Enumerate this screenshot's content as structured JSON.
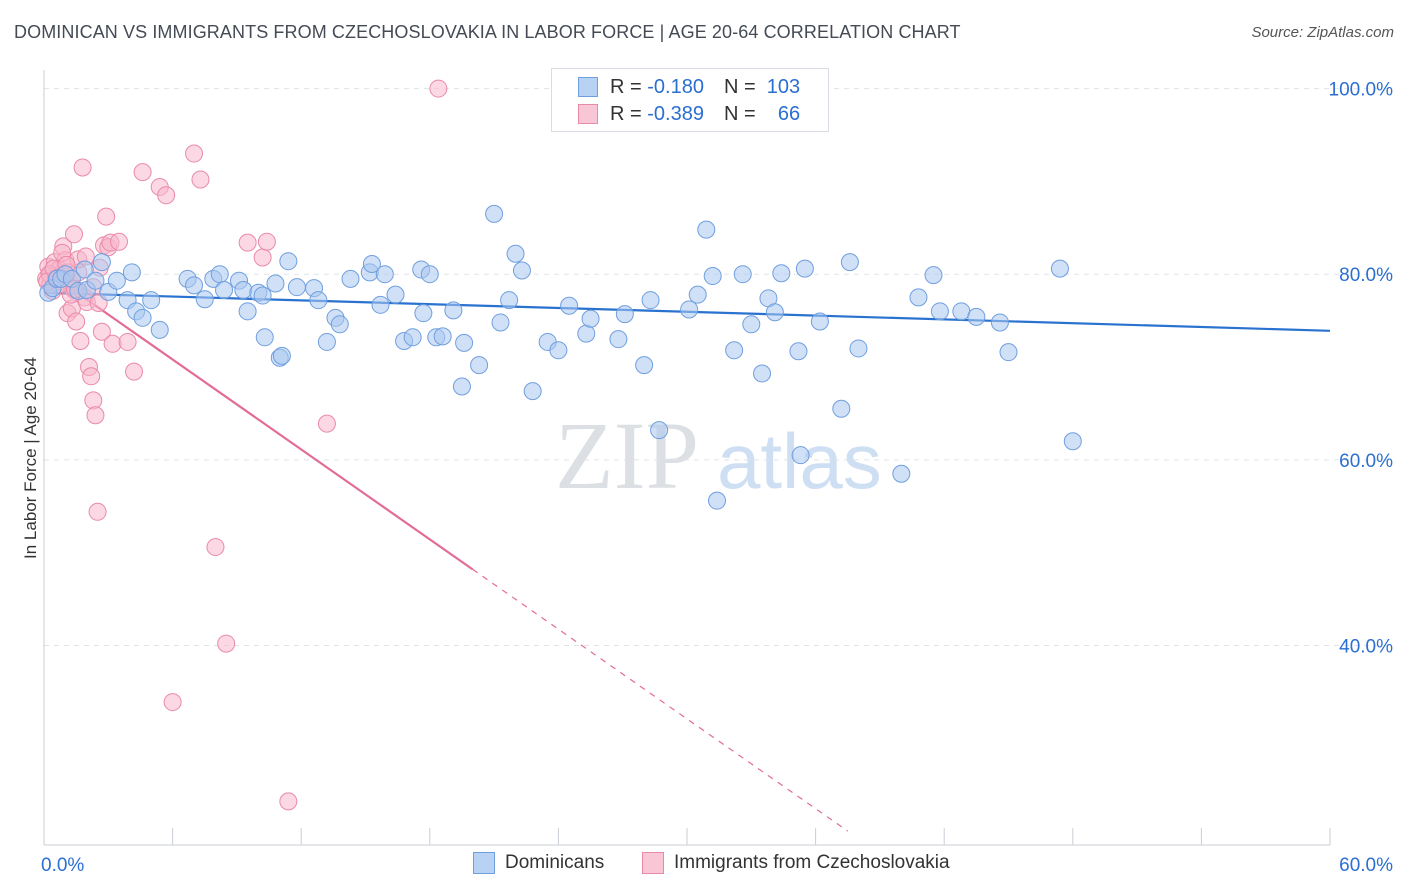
{
  "title": "DOMINICAN VS IMMIGRANTS FROM CZECHOSLOVAKIA IN LABOR FORCE | AGE 20-64 CORRELATION CHART",
  "source": "Source: ZipAtlas.com",
  "watermark": {
    "zip": "ZIP",
    "atlas": "atlas"
  },
  "legend_top": {
    "rows": [
      {
        "r_label": "R =",
        "r_value": "-0.180",
        "n_label": "N =",
        "n_value": "103"
      },
      {
        "r_label": "R =",
        "r_value": "-0.389",
        "n_label": "N =",
        "n_value": "66"
      }
    ]
  },
  "legend_bottom": [
    "Dominicans",
    "Immigrants from Czechoslovakia"
  ],
  "chart_data": {
    "type": "scatter",
    "title": "DOMINICAN VS IMMIGRANTS FROM CZECHOSLOVAKIA IN LABOR FORCE | AGE 20-64 CORRELATION CHART",
    "xlabel": "",
    "ylabel": "In Labor Force | Age 20-64",
    "xlim": [
      0,
      60
    ],
    "ylim": [
      18.5,
      102
    ],
    "x_tick_labels": [
      "0.0%",
      "60.0%"
    ],
    "y_ticks": [
      40,
      60,
      80,
      100
    ],
    "y_tick_labels": [
      "40.0%",
      "60.0%",
      "80.0%",
      "100.0%"
    ],
    "grid": true,
    "colors": {
      "blue_fill": "#a9c8f0",
      "blue_stroke": "#6f9fdf",
      "blue_line": "#2a72d0",
      "pink_fill": "#f7b8cc",
      "pink_stroke": "#ea8aa9",
      "pink_line": "#e26b97",
      "axis_text": "#2a6fd1",
      "grid": "#dfe3e8"
    },
    "series": [
      {
        "name": "Dominicans",
        "r": -0.18,
        "n": 103,
        "trend": {
          "x0": 0,
          "y0": 78.0,
          "x1": 60,
          "y1": 73.9
        },
        "x": [
          0.2,
          0.4,
          0.6,
          0.8,
          1.0,
          1.3,
          1.6,
          1.9,
          2.0,
          2.4,
          2.7,
          3.0,
          3.4,
          3.9,
          4.1,
          4.3,
          4.6,
          5.0,
          5.4,
          6.7,
          7.0,
          7.5,
          7.9,
          8.2,
          8.4,
          9.1,
          9.3,
          9.5,
          10.0,
          10.2,
          10.3,
          10.8,
          11.0,
          11.1,
          11.4,
          11.8,
          12.6,
          12.8,
          13.2,
          13.6,
          13.8,
          14.3,
          15.2,
          15.3,
          15.7,
          15.9,
          16.4,
          16.8,
          17.2,
          17.6,
          17.7,
          18.0,
          18.3,
          18.6,
          19.1,
          19.5,
          19.6,
          20.3,
          21.0,
          21.3,
          21.7,
          22.0,
          22.3,
          22.8,
          23.5,
          24.0,
          24.5,
          25.3,
          25.5,
          26.8,
          27.1,
          28.0,
          28.3,
          28.7,
          30.1,
          30.5,
          30.9,
          31.2,
          31.4,
          32.2,
          32.6,
          33.0,
          33.5,
          33.8,
          34.1,
          34.4,
          35.2,
          35.3,
          35.5,
          36.2,
          37.2,
          37.6,
          38.0,
          40.0,
          40.8,
          41.5,
          41.8,
          42.8,
          43.5,
          44.6,
          45.0,
          47.4,
          48.0
        ],
        "y": [
          78.0,
          78.5,
          79.5,
          79.5,
          80.0,
          79.5,
          78.2,
          80.5,
          78.3,
          79.3,
          81.3,
          78.1,
          79.3,
          77.2,
          80.2,
          76.0,
          75.3,
          77.2,
          74.0,
          79.5,
          78.8,
          77.3,
          79.5,
          80.0,
          78.3,
          79.3,
          78.3,
          76.0,
          78.0,
          77.7,
          73.2,
          79.0,
          71.0,
          71.2,
          81.4,
          78.6,
          78.5,
          77.2,
          72.7,
          75.3,
          74.6,
          79.5,
          80.2,
          81.1,
          76.7,
          80.0,
          77.8,
          72.8,
          73.2,
          80.5,
          75.8,
          80.0,
          73.2,
          73.3,
          76.1,
          67.9,
          72.6,
          70.2,
          86.5,
          74.8,
          77.2,
          82.2,
          80.4,
          67.4,
          72.7,
          71.8,
          76.6,
          73.6,
          75.2,
          73.0,
          75.7,
          70.2,
          77.2,
          63.2,
          76.2,
          77.8,
          84.8,
          79.8,
          55.6,
          71.8,
          80.0,
          74.6,
          69.3,
          77.4,
          75.9,
          80.1,
          71.7,
          60.5,
          80.6,
          74.9,
          65.5,
          81.3,
          72.0,
          58.5,
          77.5,
          79.9,
          76.0,
          76.0,
          75.4,
          74.8,
          71.6,
          80.6,
          62.0
        ]
      },
      {
        "name": "Immigrants from Czechoslovakia",
        "r": -0.389,
        "n": 66,
        "trend": {
          "x0": 0,
          "y0": 80.5,
          "x1": 20.0,
          "y1": 48.2
        },
        "trend_dashed": {
          "x0": 20.0,
          "y0": 48.2,
          "x1": 37.5,
          "y1": 20.0
        },
        "x": [
          0.1,
          0.2,
          0.3,
          0.3,
          0.4,
          0.5,
          0.6,
          0.7,
          0.8,
          0.9,
          1.0,
          1.1,
          1.1,
          1.2,
          1.3,
          1.4,
          1.4,
          1.5,
          1.6,
          1.7,
          1.8,
          1.9,
          2.0,
          2.1,
          2.2,
          2.3,
          2.4,
          2.5,
          2.6,
          2.7,
          2.8,
          2.9,
          3.0,
          3.1,
          3.2,
          3.5,
          3.9,
          4.2,
          4.6,
          5.4,
          5.7,
          6.0,
          7.0,
          7.3,
          8.0,
          8.5,
          9.5,
          10.2,
          10.4,
          11.4,
          13.2,
          18.4,
          0.25,
          0.55,
          0.85,
          1.25,
          1.6,
          1.95,
          2.3,
          2.55,
          0.15,
          0.45,
          0.75,
          1.05,
          1.45,
          0.65
        ],
        "y": [
          79.5,
          80.8,
          79.0,
          80.0,
          78.2,
          81.3,
          79.8,
          80.5,
          79.2,
          83.0,
          81.5,
          80.2,
          75.8,
          79.1,
          76.3,
          78.3,
          84.3,
          74.9,
          80.2,
          72.8,
          91.5,
          77.5,
          77.0,
          70.0,
          69.0,
          66.4,
          64.8,
          54.4,
          80.7,
          73.8,
          83.1,
          86.2,
          82.9,
          83.4,
          72.5,
          83.5,
          72.7,
          69.5,
          91.0,
          89.4,
          88.5,
          33.9,
          93.0,
          90.2,
          50.6,
          40.2,
          83.4,
          81.8,
          83.5,
          23.2,
          63.9,
          100.0,
          80.0,
          79.5,
          82.3,
          77.8,
          81.6,
          81.9,
          78.6,
          76.9,
          79.2,
          80.6,
          78.9,
          81.0,
          78.4,
          79.6
        ]
      }
    ]
  }
}
